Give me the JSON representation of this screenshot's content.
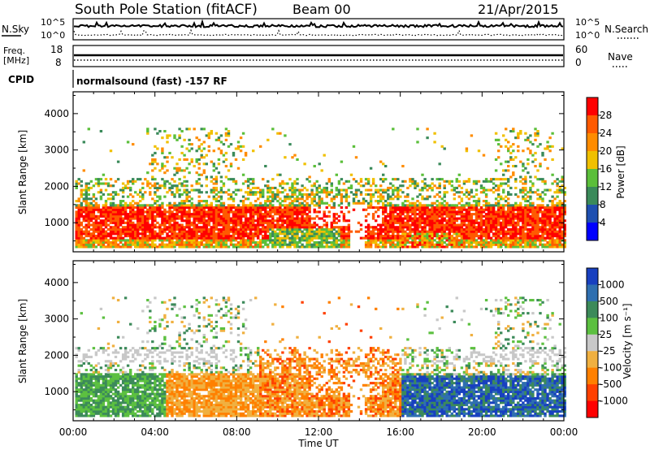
{
  "header": {
    "station": "South Pole Station (fitACF)",
    "beam": "Beam 00",
    "date": "21/Apr/2015"
  },
  "strip_panels": {
    "nsky_label": "N.Sky",
    "nsearch_label": "N.Search",
    "noise_ticks_left": [
      "10^5",
      "10^0"
    ],
    "noise_ticks_right": [
      "10^5",
      "10^0"
    ],
    "freq_label_top": "Freq.",
    "freq_label_unit": "[MHz]",
    "freq_ticks": [
      "18",
      "8"
    ],
    "nave_label": "Nave",
    "nave_ticks": [
      "60",
      "0"
    ],
    "cpid_label": "CPID",
    "cpid_value": "normalsound (fast) -157 RF"
  },
  "chart_data": [
    {
      "type": "heatmap",
      "name": "power",
      "ylabel": "Slant Range [km]",
      "yticks": [
        1000,
        2000,
        3000,
        4000
      ],
      "ylim": [
        200,
        4600
      ],
      "xticks": [
        "00:00",
        "04:00",
        "08:00",
        "12:00",
        "16:00",
        "20:00",
        "00:00"
      ],
      "xlim": [
        0,
        24
      ],
      "colorbar": {
        "label": "Power [dB]",
        "ticks": [
          "4",
          "8",
          "12",
          "16",
          "20",
          "24",
          "28"
        ],
        "colors": [
          "#0000ff",
          "#1e4fb0",
          "#3a8a5a",
          "#5bbf3a",
          "#f0c000",
          "#ff8c00",
          "#ff5a00",
          "#ff0000"
        ]
      }
    },
    {
      "type": "heatmap",
      "name": "velocity",
      "ylabel": "Slant Range [km]",
      "yticks": [
        1000,
        2000,
        3000,
        4000
      ],
      "ylim": [
        200,
        4600
      ],
      "xticks": [
        "00:00",
        "04:00",
        "08:00",
        "12:00",
        "16:00",
        "20:00",
        "00:00"
      ],
      "xlim": [
        0,
        24
      ],
      "xlabel": "Time UT",
      "colorbar": {
        "label": "Velocity [m s⁻¹]",
        "ticks": [
          "1000",
          "500",
          "100",
          "25",
          "-25",
          "-100",
          "-500",
          "-1000"
        ],
        "colors": [
          "#1840c0",
          "#2f6fb0",
          "#3c8a5a",
          "#5cc040",
          "#c8c8c8",
          "#f0b040",
          "#ff8000",
          "#ff4000",
          "#ff0000"
        ]
      }
    }
  ]
}
